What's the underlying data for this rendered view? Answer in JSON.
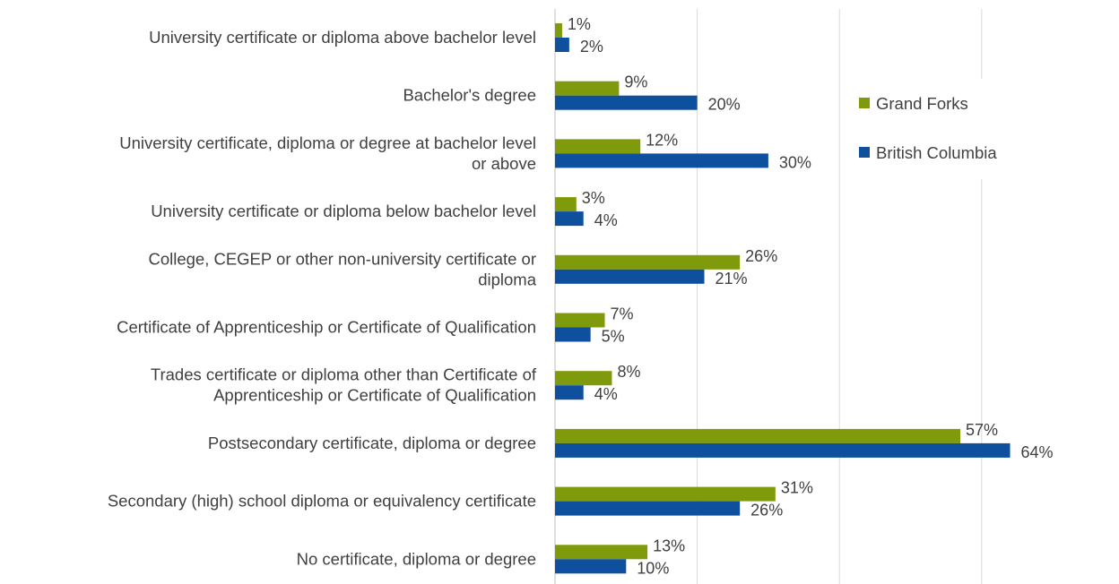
{
  "chart_data": {
    "type": "bar",
    "orientation": "horizontal",
    "categories": [
      "University certificate or diploma above bachelor level",
      "Bachelor's degree",
      "University certificate, diploma or degree at bachelor level or above",
      "University certificate or diploma below bachelor level",
      "College, CEGEP or other non-university certificate or diploma",
      "Certificate of Apprenticeship or Certificate of Qualification",
      "Trades certificate or diploma other than Certificate of Apprenticeship or Certificate of Qualification",
      "Postsecondary certificate, diploma or degree",
      "Secondary (high) school diploma or equivalency certificate",
      "No certificate, diploma or degree"
    ],
    "category_lines": [
      [
        "University certificate or diploma above bachelor level"
      ],
      [
        "Bachelor's degree"
      ],
      [
        "University certificate, diploma or degree at bachelor level",
        "or above"
      ],
      [
        "University certificate or diploma below bachelor level"
      ],
      [
        "College, CEGEP or other non-university certificate or",
        "diploma"
      ],
      [
        "Certificate of Apprenticeship or Certificate of Qualification"
      ],
      [
        "Trades certificate or diploma other than Certificate of",
        "Apprenticeship or Certificate of Qualification"
      ],
      [
        "Postsecondary certificate, diploma or degree"
      ],
      [
        "Secondary (high) school diploma or equivalency certificate"
      ],
      [
        "No certificate, diploma or degree"
      ]
    ],
    "series": [
      {
        "name": "Grand Forks",
        "color": "#7f9a0b",
        "values": [
          1,
          9,
          12,
          3,
          26,
          7,
          8,
          57,
          31,
          13
        ],
        "labels": [
          "1%",
          "9%",
          "12%",
          "3%",
          "26%",
          "7%",
          "8%",
          "57%",
          "31%",
          "13%"
        ]
      },
      {
        "name": "British Columbia",
        "color": "#0f509e",
        "values": [
          2,
          20,
          30,
          4,
          21,
          5,
          4,
          64,
          26,
          10
        ],
        "labels": [
          "2%",
          "20%",
          "30%",
          "4%",
          "21%",
          "5%",
          "4%",
          "64%",
          "26%",
          "10%"
        ]
      }
    ],
    "xlim": [
      0,
      80
    ],
    "grid": true,
    "legend_position": "right"
  }
}
